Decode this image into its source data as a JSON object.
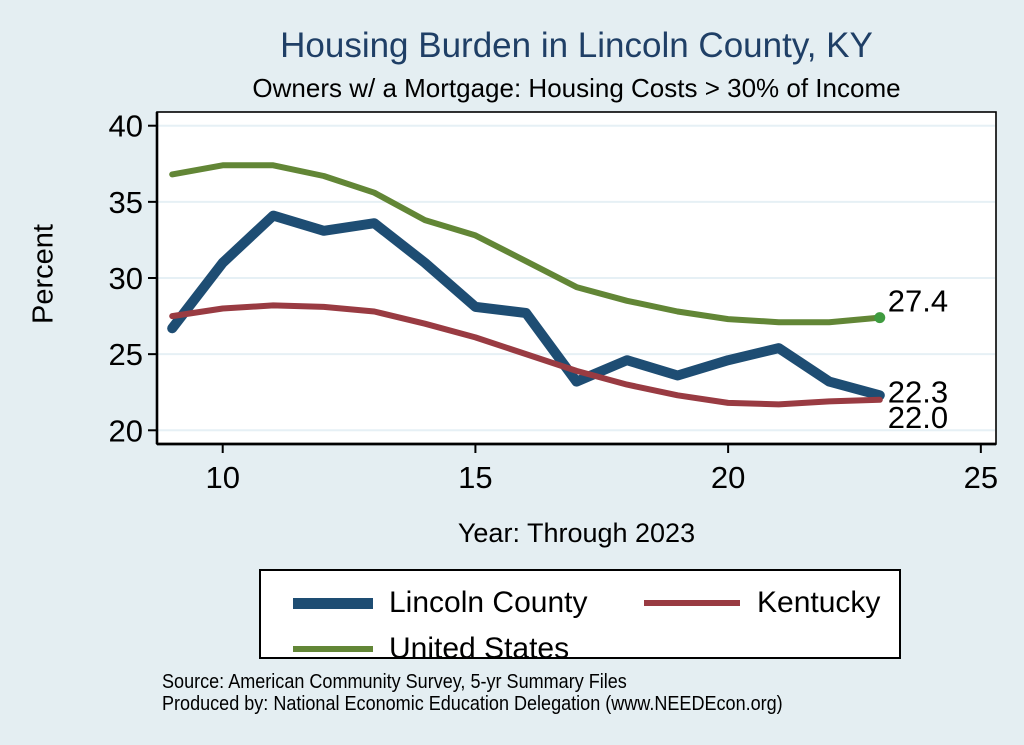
{
  "colors": {
    "background": "#e4eef2",
    "plot_background": "#ffffff",
    "gridline": "#e6f0f5",
    "axis_and_text": "#000000",
    "title_text": "#1f3f66"
  },
  "footer": {
    "source_line": "Source: American Community Survey, 5-yr Summary Files",
    "produced_line": "Produced by: National Economic Education Delegation (www.NEEDEcon.org)"
  },
  "chart_data": {
    "type": "line",
    "title": "Housing Burden in Lincoln County, KY",
    "subtitle": "Owners w/ a Mortgage: Housing Costs > 30% of Income",
    "xlabel": "Year: Through 2023",
    "ylabel": "Percent",
    "x_years": [
      2009,
      2010,
      2011,
      2012,
      2013,
      2014,
      2015,
      2016,
      2017,
      2018,
      2019,
      2020,
      2021,
      2022,
      2023
    ],
    "x": [
      9,
      10,
      11,
      12,
      13,
      14,
      15,
      16,
      17,
      18,
      19,
      20,
      21,
      22,
      23
    ],
    "xticks": [
      10,
      15,
      20,
      25
    ],
    "yticks": [
      20,
      25,
      30,
      35,
      40
    ],
    "xlim": [
      8.7,
      25.3
    ],
    "ylim": [
      19.1,
      40.9
    ],
    "grid": "horizontal-only",
    "legend_position": "bottom",
    "series": [
      {
        "name": "Lincoln County",
        "color": "#1e4d73",
        "line_width": 10,
        "values": [
          26.7,
          31.0,
          34.1,
          33.1,
          33.6,
          31.0,
          28.1,
          27.7,
          23.2,
          24.6,
          23.6,
          24.6,
          25.4,
          23.2,
          22.3
        ],
        "end_label": "22.3",
        "end_marker": false
      },
      {
        "name": "Kentucky",
        "color": "#993b42",
        "line_width": 6,
        "values": [
          27.5,
          28.0,
          28.2,
          28.1,
          27.8,
          27.0,
          26.1,
          25.0,
          23.9,
          23.0,
          22.3,
          21.8,
          21.7,
          21.9,
          22.0
        ],
        "end_label": "22.0",
        "end_marker": false
      },
      {
        "name": "United States",
        "color": "#628636",
        "line_width": 6,
        "values": [
          36.8,
          37.4,
          37.4,
          36.7,
          35.6,
          33.8,
          32.8,
          31.1,
          29.4,
          28.5,
          27.8,
          27.3,
          27.1,
          27.1,
          27.4
        ],
        "end_label": "27.4",
        "end_marker": true,
        "end_marker_color": "#3f9b3f"
      }
    ]
  }
}
